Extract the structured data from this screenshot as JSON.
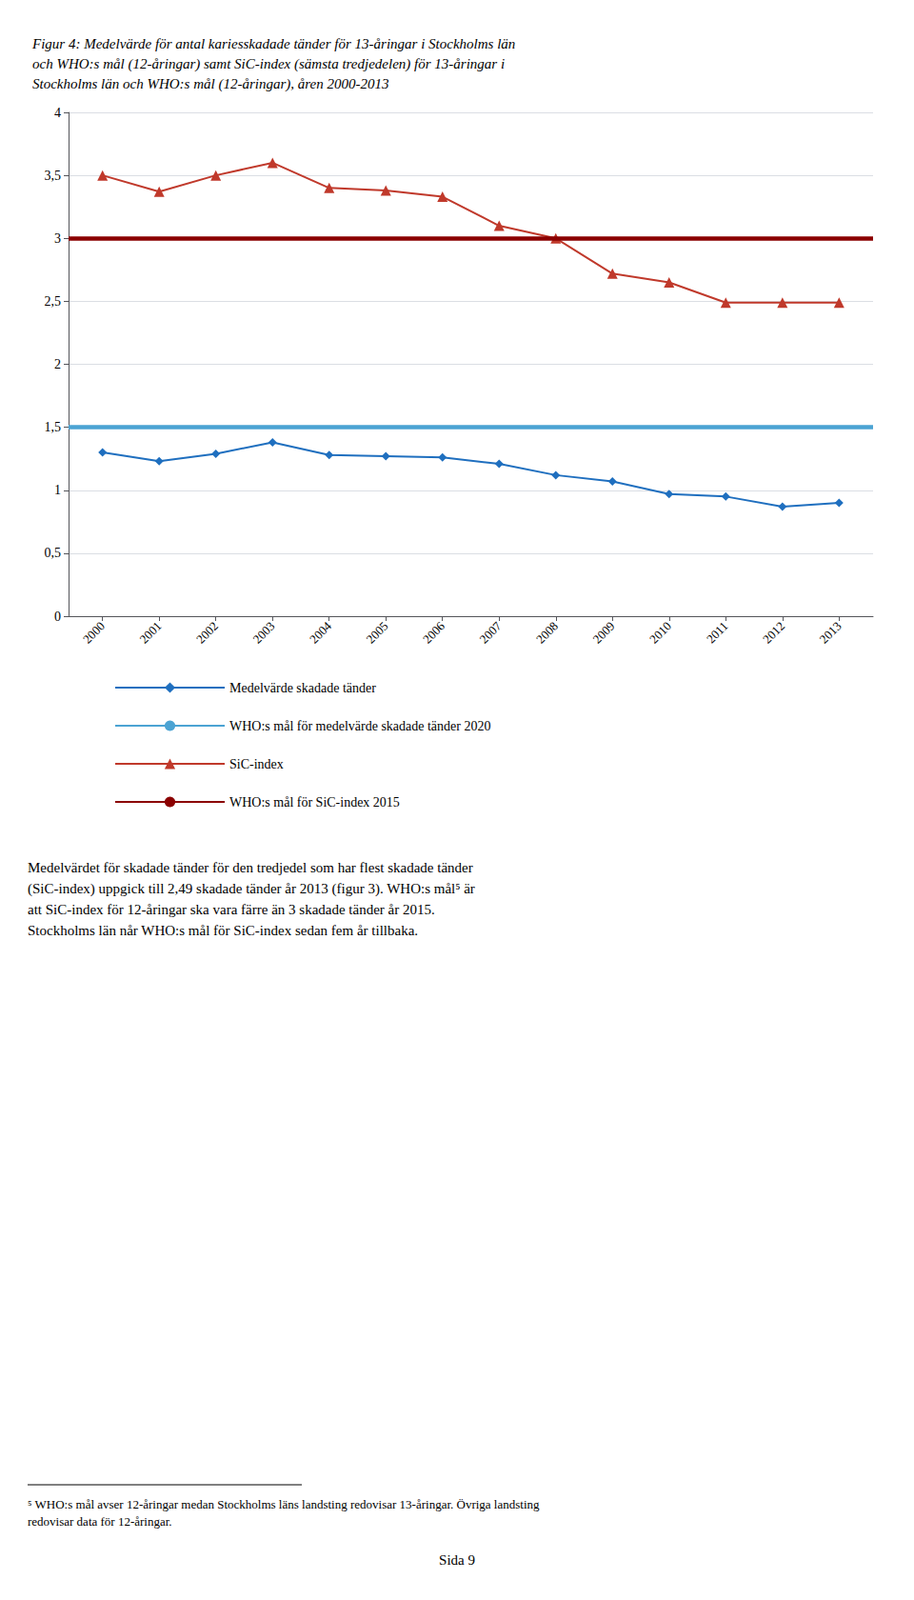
{
  "chart_data": {
    "type": "line",
    "title": "Figur 4: Medelvärde för antal kariesskadade tänder för 13-åringar i Stockholms län\noch WHO:s mål (12-åringar) samt SiC-index (sämsta tredjedelen) för 13-åringar i\nStockholms län och WHO:s mål (12-åringar), åren 2000-2013",
    "x": [
      2000,
      2001,
      2002,
      2003,
      2004,
      2005,
      2006,
      2007,
      2008,
      2009,
      2010,
      2011,
      2012,
      2013
    ],
    "xlim": [
      1999.4,
      2013.6
    ],
    "xticks": [
      2000,
      2001,
      2002,
      2003,
      2004,
      2005,
      2006,
      2007,
      2008,
      2009,
      2010,
      2011,
      2012,
      2013
    ],
    "ylim": [
      0,
      4
    ],
    "yticks": [
      0,
      {
        "value": 0.5,
        "label": "0,5"
      },
      1,
      {
        "value": 1.5,
        "label": "1,5"
      },
      2,
      {
        "value": 2.5,
        "label": "2,5"
      },
      3,
      {
        "value": 3.5,
        "label": "3,5"
      },
      4
    ],
    "grid": true,
    "legend": "bottom",
    "series": [
      {
        "name": "Medelvärde skadade tänder",
        "type": "line",
        "color": "#1F6FBF",
        "marker": "diamond",
        "values": [
          1.3,
          1.23,
          1.29,
          1.38,
          1.28,
          1.27,
          1.26,
          1.21,
          1.12,
          1.07,
          0.97,
          0.95,
          0.87,
          0.9
        ]
      },
      {
        "name": "WHO:s mål för medelvärde skadade tänder 2020",
        "type": "hline",
        "color": "#4BA3D3",
        "value": 1.5
      },
      {
        "name": "SiC-index",
        "type": "line",
        "color": "#C0392B",
        "marker": "triangle",
        "values": [
          3.5,
          3.37,
          3.5,
          3.6,
          3.4,
          3.38,
          3.33,
          3.1,
          3.0,
          2.72,
          2.65,
          2.49,
          2.49,
          2.49
        ]
      },
      {
        "name": "WHO:s mål för SiC-index 2015",
        "type": "hline",
        "color": "#8B0000",
        "value": 3.0
      }
    ],
    "annotations": [
      "Medelvärdet för skadade tänder för den tredjedel som har flest skadade tänder\n(SiC-index) uppgick till 2,49 skadade tänder år 2013 (figur 3). WHO:s mål⁵ är\natt SiC-index för 12-åringar ska vara färre än 3 skadade tänder år 2015.\nStockholms län når WHO:s mål för SiC-index sedan fem år tillbaka.",
      "⁵ WHO:s mål avser 12-åringar medan Stockholms läns landsting redovisar 13-åringar. Övriga landsting\nredovisar data för 12-åringar.",
      "Sida 9"
    ]
  }
}
